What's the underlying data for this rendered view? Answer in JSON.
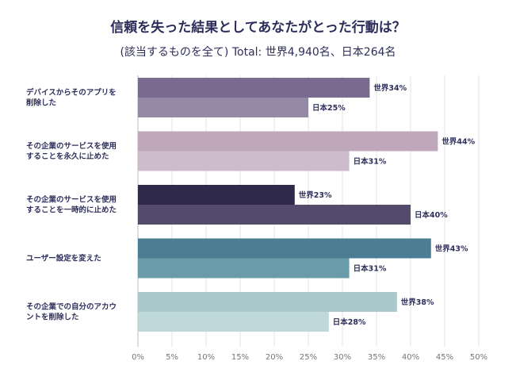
{
  "chart_data": {
    "type": "bar",
    "orientation": "horizontal",
    "title": "信頼を失った結果としてあなたがとった行動は？",
    "subtitle": "(該当するものを全て) Total: 世界4,940名、日本264名",
    "categories": [
      [
        "デバイスからそのアプリを",
        "削除した"
      ],
      [
        "その企業のサービスを使用",
        "することを永久に止めた"
      ],
      [
        "その企業のサービスを使用",
        "することを一時的に止めた"
      ],
      [
        "ユーザー設定を変えた"
      ],
      [
        "その企業での自分のアカウ",
        "ントを削除した"
      ]
    ],
    "series": [
      {
        "name": "世界",
        "values": [
          34,
          44,
          23,
          43,
          38
        ]
      },
      {
        "name": "日本",
        "values": [
          25,
          31,
          40,
          31,
          28
        ]
      }
    ],
    "data_labels": [
      [
        "世界34%",
        "日本25%"
      ],
      [
        "世界44%",
        "日本31%"
      ],
      [
        "世界23%",
        "日本40%"
      ],
      [
        "世界43%",
        "日本31%"
      ],
      [
        "世界38%",
        "日本28%"
      ]
    ],
    "bar_colors": [
      [
        "#7b6a90",
        "#958aa6"
      ],
      [
        "#c0a8bc",
        "#cdbccc"
      ],
      [
        "#2f2a4c",
        "#534a6c"
      ],
      [
        "#4b7e93",
        "#6a9bab"
      ],
      [
        "#a9c9cc",
        "#bfd9db"
      ]
    ],
    "xlim": [
      0,
      50
    ],
    "xticks": [
      "0%",
      "5%",
      "10%",
      "15%",
      "20%",
      "25%",
      "30%",
      "35%",
      "40%",
      "45%",
      "50%"
    ],
    "grid": true,
    "legend": "none"
  }
}
